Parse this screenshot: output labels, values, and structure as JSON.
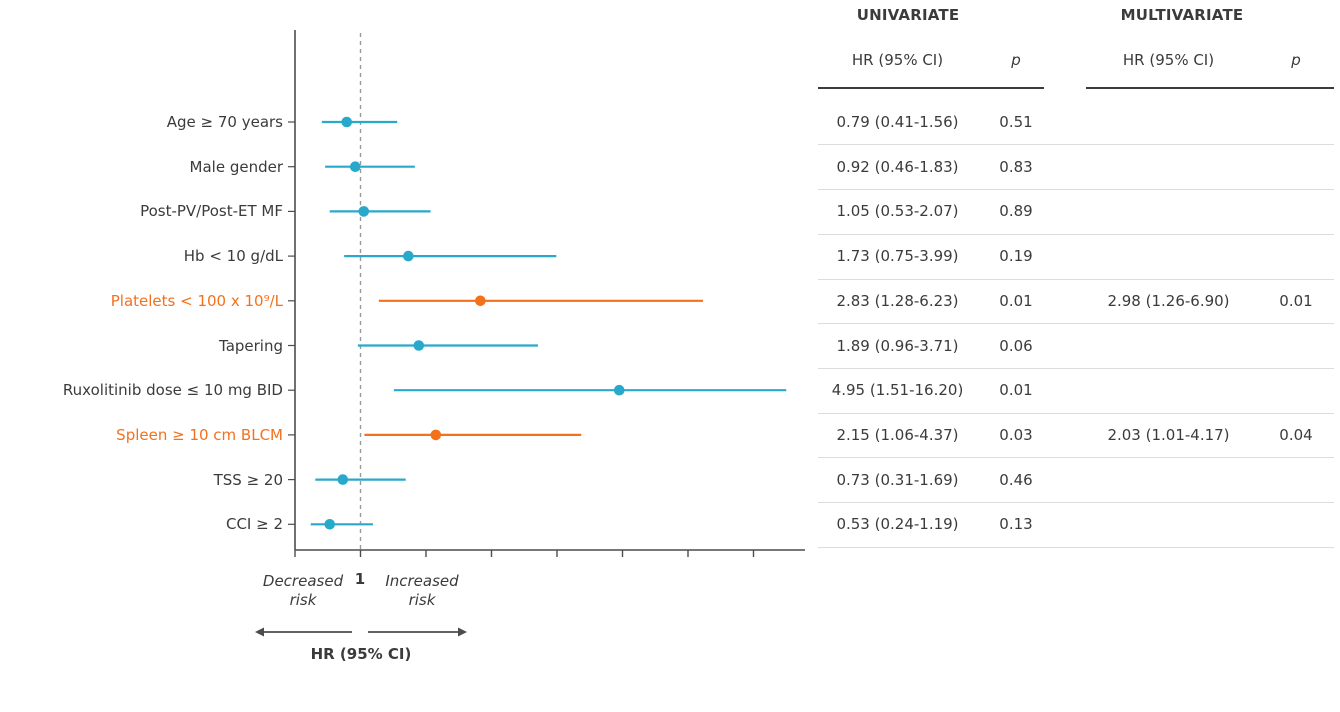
{
  "colors": {
    "teal": "#28A9CB",
    "orange": "#F4711C",
    "text": "#3B3B3B",
    "axis": "#4C4C4C",
    "separator": "#DCDCDC",
    "dashed": "#9A9A9A"
  },
  "table": {
    "univariate_header": "UNIVARIATE",
    "multivariate_header": "MULTIVARIATE",
    "hr_col_label": "HR (95% CI)",
    "p_col_label": "p"
  },
  "axis": {
    "ref_tick_label": "1",
    "decreased_label": "Decreased\nrisk",
    "increased_label": "Increased\nrisk",
    "xlabel": "HR (95% CI)"
  },
  "chart_data": {
    "type": "forest",
    "x_scale": "linear",
    "x_reference": 1,
    "xlim": [
      0,
      7.8
    ],
    "x_ticks": [
      0,
      1,
      2,
      3,
      4,
      5,
      6,
      7
    ],
    "legend": "none",
    "rows": [
      {
        "label": "Age ≥ 70 years",
        "hr": 0.79,
        "lo": 0.41,
        "hi": 1.56,
        "color": "teal",
        "uni_hr": "0.79 (0.41-1.56)",
        "uni_p": "0.51",
        "multi_hr": "",
        "multi_p": ""
      },
      {
        "label": "Male gender",
        "hr": 0.92,
        "lo": 0.46,
        "hi": 1.83,
        "color": "teal",
        "uni_hr": "0.92 (0.46-1.83)",
        "uni_p": "0.83",
        "multi_hr": "",
        "multi_p": ""
      },
      {
        "label": "Post-PV/Post-ET MF",
        "hr": 1.05,
        "lo": 0.53,
        "hi": 2.07,
        "color": "teal",
        "uni_hr": "1.05 (0.53-2.07)",
        "uni_p": "0.89",
        "multi_hr": "",
        "multi_p": ""
      },
      {
        "label": "Hb < 10 g/dL",
        "hr": 1.73,
        "lo": 0.75,
        "hi": 3.99,
        "color": "teal",
        "uni_hr": "1.73 (0.75-3.99)",
        "uni_p": "0.19",
        "multi_hr": "",
        "multi_p": ""
      },
      {
        "label": "Platelets < 100 x 10⁹/L",
        "hr": 2.83,
        "lo": 1.28,
        "hi": 6.23,
        "color": "orange",
        "uni_hr": "2.83 (1.28-6.23)",
        "uni_p": "0.01",
        "multi_hr": "2.98 (1.26-6.90)",
        "multi_p": "0.01"
      },
      {
        "label": "Tapering",
        "hr": 1.89,
        "lo": 0.96,
        "hi": 3.71,
        "color": "teal",
        "uni_hr": "1.89 (0.96-3.71)",
        "uni_p": "0.06",
        "multi_hr": "",
        "multi_p": ""
      },
      {
        "label": "Ruxolitinib dose ≤ 10 mg BID",
        "hr": 4.95,
        "lo": 1.51,
        "hi": 16.2,
        "color": "teal",
        "uni_hr": "4.95 (1.51-16.20)",
        "uni_p": "0.01",
        "multi_hr": "",
        "multi_p": ""
      },
      {
        "label": "Spleen ≥ 10 cm BLCM",
        "hr": 2.15,
        "lo": 1.06,
        "hi": 4.37,
        "color": "orange",
        "uni_hr": "2.15 (1.06-4.37)",
        "uni_p": "0.03",
        "multi_hr": "2.03 (1.01-4.17)",
        "multi_p": "0.04"
      },
      {
        "label": "TSS ≥ 20",
        "hr": 0.73,
        "lo": 0.31,
        "hi": 1.69,
        "color": "teal",
        "uni_hr": "0.73 (0.31-1.69)",
        "uni_p": "0.46",
        "multi_hr": "",
        "multi_p": ""
      },
      {
        "label": "CCI ≥ 2",
        "hr": 0.53,
        "lo": 0.24,
        "hi": 1.19,
        "color": "teal",
        "uni_hr": "0.53 (0.24-1.19)",
        "uni_p": "0.13",
        "multi_hr": "",
        "multi_p": ""
      }
    ]
  }
}
